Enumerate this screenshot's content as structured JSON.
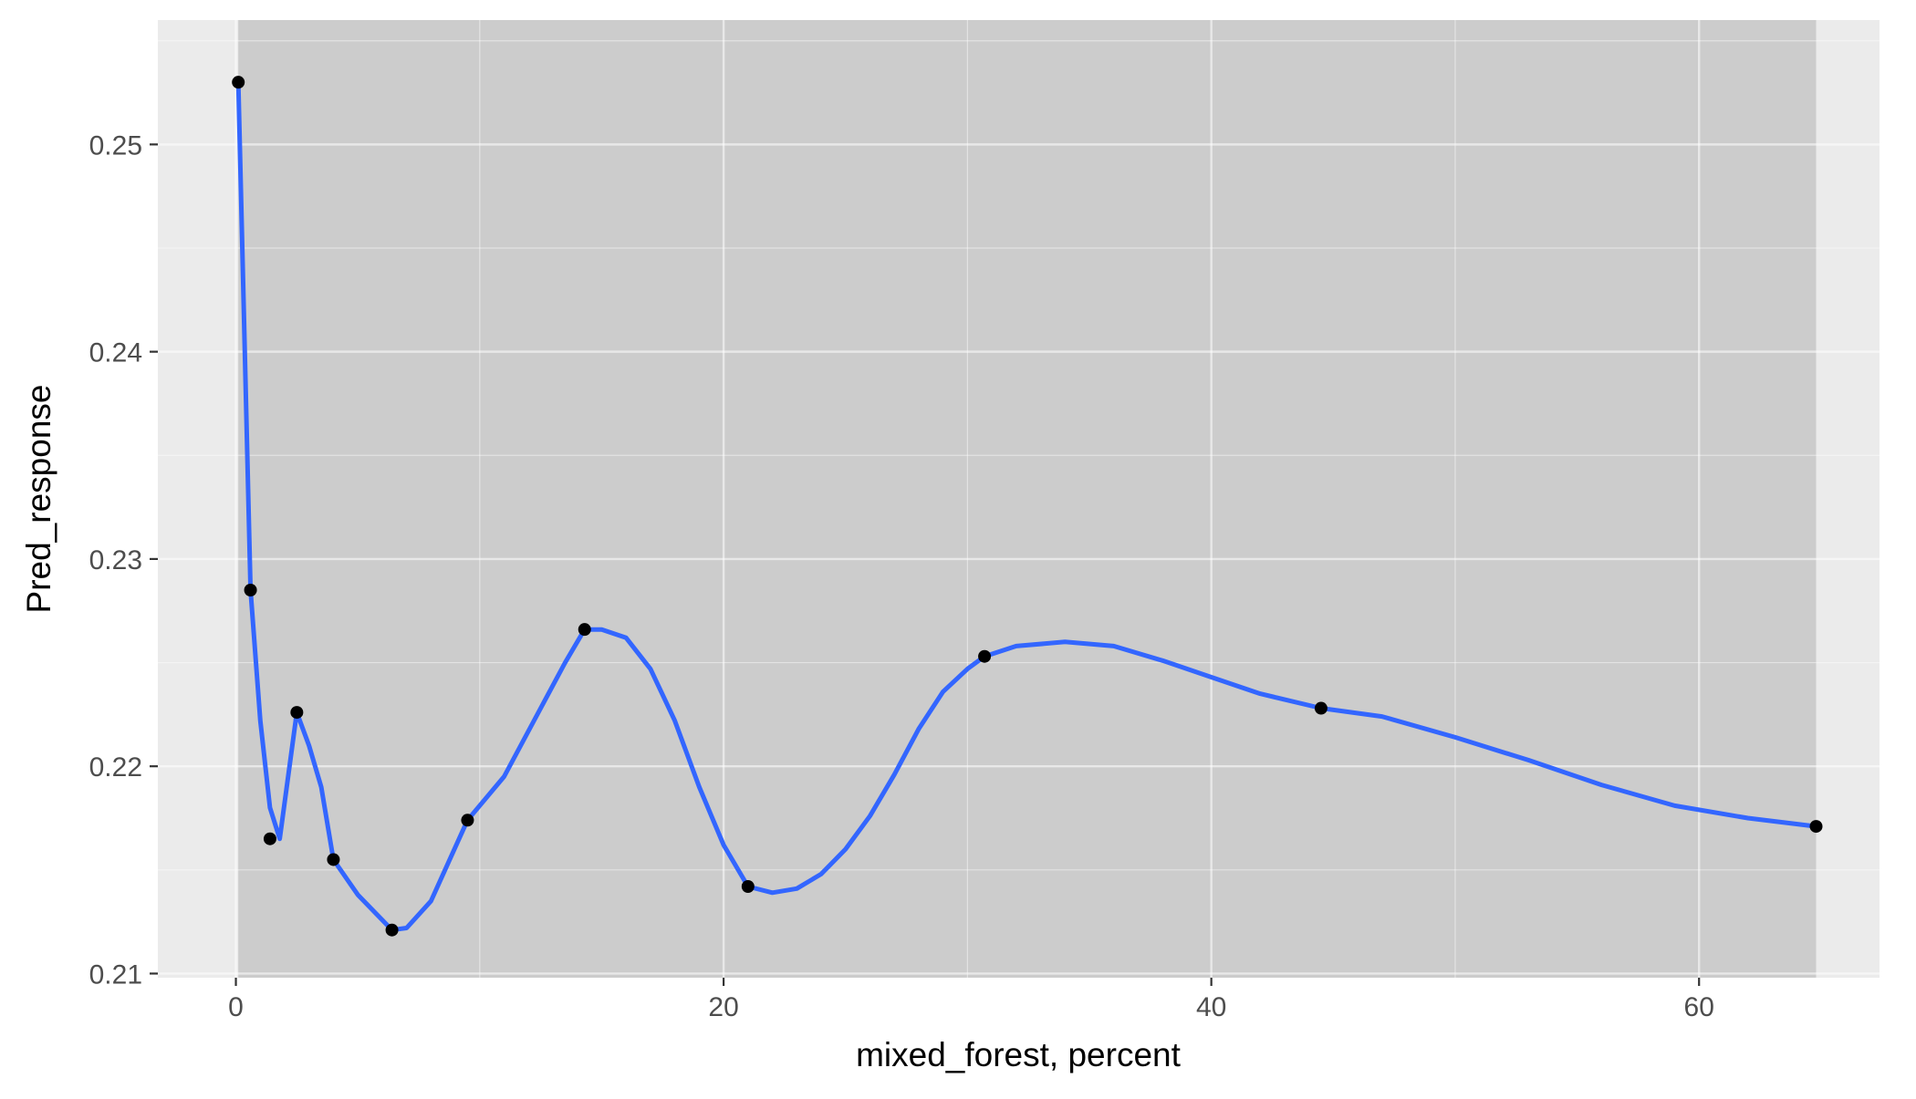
{
  "chart_data": {
    "type": "line",
    "title": "",
    "xlabel": "mixed_forest, percent",
    "ylabel": "Pred_response",
    "xlim": [
      -3.2,
      67.4
    ],
    "ylim": [
      0.2098,
      0.256
    ],
    "x_ticks": [
      0,
      20,
      40,
      60
    ],
    "y_ticks": [
      0.21,
      0.22,
      0.23,
      0.24,
      0.25
    ],
    "x_tick_labels": [
      "0",
      "20",
      "40",
      "60"
    ],
    "y_tick_labels": [
      "0.21",
      "0.22",
      "0.23",
      "0.24",
      "0.25"
    ],
    "grid": true,
    "legend": "none",
    "shaded_region": {
      "x": [
        0.1,
        64.8
      ],
      "color": "#cccccc"
    },
    "points": {
      "x": [
        0.1,
        0.6,
        1.4,
        2.5,
        4.0,
        6.4,
        9.5,
        14.3,
        21.0,
        30.7,
        44.5,
        64.8
      ],
      "y": [
        0.253,
        0.2285,
        0.2165,
        0.2226,
        0.2155,
        0.2121,
        0.2174,
        0.2266,
        0.2142,
        0.2253,
        0.2228,
        0.2171
      ],
      "color": "#000000"
    },
    "smooth_line": {
      "x": [
        0.1,
        0.6,
        1.0,
        1.4,
        1.8,
        2.5,
        3.0,
        3.5,
        4.0,
        5.0,
        6.4,
        7.0,
        8.0,
        9.5,
        11.0,
        12.5,
        13.5,
        14.3,
        15.0,
        16.0,
        17.0,
        18.0,
        19.0,
        20.0,
        21.0,
        22.0,
        23.0,
        24.0,
        25.0,
        26.0,
        27.0,
        28.0,
        29.0,
        30.0,
        30.7,
        32.0,
        34.0,
        36.0,
        38.0,
        40.0,
        42.0,
        44.5,
        47.0,
        50.0,
        53.0,
        56.0,
        59.0,
        62.0,
        64.8
      ],
      "y": [
        0.253,
        0.2285,
        0.2222,
        0.218,
        0.2165,
        0.2226,
        0.221,
        0.219,
        0.2155,
        0.2138,
        0.2121,
        0.2122,
        0.2135,
        0.2174,
        0.2195,
        0.2228,
        0.225,
        0.2266,
        0.2266,
        0.2262,
        0.2247,
        0.2222,
        0.219,
        0.2162,
        0.2142,
        0.2139,
        0.2141,
        0.2148,
        0.216,
        0.2176,
        0.2196,
        0.2218,
        0.2236,
        0.2247,
        0.2253,
        0.2258,
        0.226,
        0.2258,
        0.2251,
        0.2243,
        0.2235,
        0.2228,
        0.2224,
        0.2214,
        0.2203,
        0.2191,
        0.2181,
        0.2175,
        0.2171
      ],
      "color": "#3366ff"
    }
  }
}
